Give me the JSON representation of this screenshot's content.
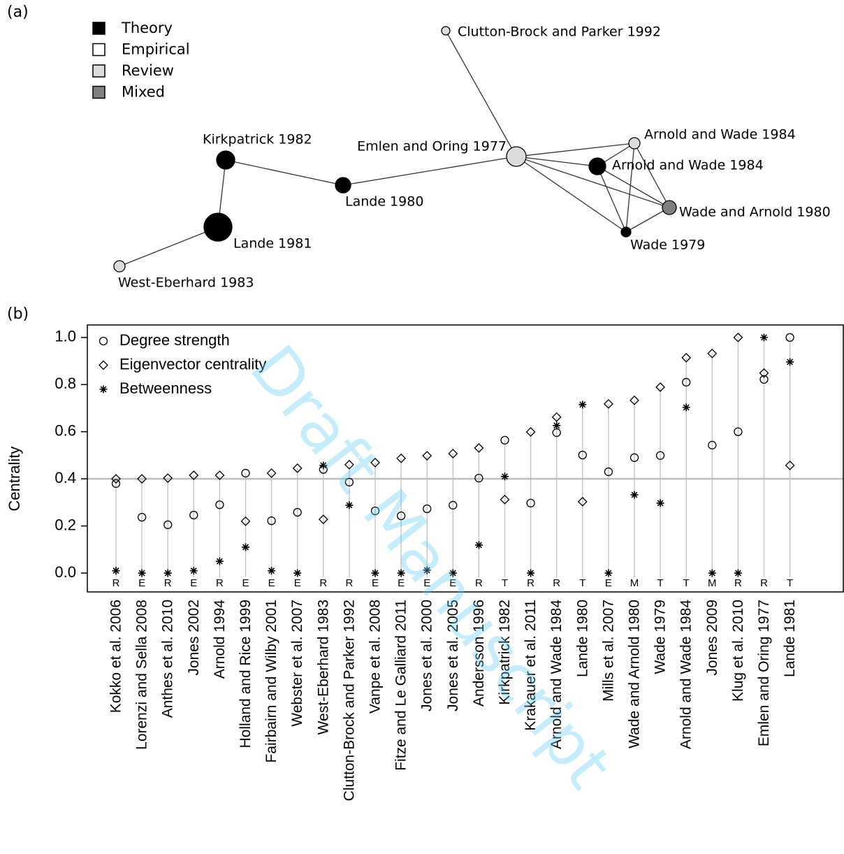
{
  "panel_labels": [
    "(a)",
    "(b)"
  ],
  "watermark": "Draft Manuscript",
  "network": {
    "legend": [
      {
        "name": "Theory",
        "color": "#000000"
      },
      {
        "name": "Empirical",
        "color": "#ffffff"
      },
      {
        "name": "Review",
        "color": "#dcdcdc"
      },
      {
        "name": "Mixed",
        "color": "#808080"
      }
    ],
    "nodes": [
      {
        "label": "Clutton-Brock and Parker 1992",
        "type": 2
      },
      {
        "label": "Emlen and Oring 1977",
        "type": 2
      },
      {
        "label": "Arnold and Wade 1984",
        "type": 2
      },
      {
        "label": "Arnold and Wade 1984",
        "type": 0
      },
      {
        "label": "Wade and Arnold 1980",
        "type": 3
      },
      {
        "label": "Wade 1979",
        "type": 0
      },
      {
        "label": "Kirkpatrick 1982",
        "type": 0
      },
      {
        "label": "Lande 1980",
        "type": 0
      },
      {
        "label": "Lande 1981",
        "type": 0
      },
      {
        "label": "West-Eberhard 1983",
        "type": 2
      }
    ],
    "edges": [
      [
        0,
        1
      ],
      [
        1,
        2
      ],
      [
        1,
        3
      ],
      [
        1,
        4
      ],
      [
        1,
        5
      ],
      [
        1,
        7
      ],
      [
        7,
        6
      ],
      [
        6,
        8
      ],
      [
        8,
        9
      ],
      [
        2,
        3
      ],
      [
        2,
        4
      ],
      [
        2,
        5
      ],
      [
        3,
        4
      ],
      [
        3,
        5
      ],
      [
        4,
        5
      ]
    ]
  },
  "chart_data": {
    "type": "dot",
    "y_label": "Centrality",
    "categories": [
      "Kokko et al. 2006",
      "Lorenzi and Sella 2008",
      "Anthes et al. 2010",
      "Jones 2002",
      "Arnold 1994",
      "Holland and Rice 1999",
      "Fairbairn and Wilby 2001",
      "Webster et al. 2007",
      "West-Eberhard 1983",
      "Clutton-Brock and Parker 1992",
      "Vanpe et al. 2008",
      "Fitze and Le Galliard 2011",
      "Jones et al. 2000",
      "Jones et al. 2005",
      "Andersson 1996",
      "Kirkpatrick 1982",
      "Krakauer et al. 2011",
      "Arnold and Wade 1984",
      "Lande 1980",
      "Mills et al. 2007",
      "Wade and Arnold 1980",
      "Wade 1979",
      "Arnold and Wade 1984",
      "Jones 2009",
      "Klug et al. 2010",
      "Emlen and Oring 1977",
      "Lande 1981"
    ],
    "category_types": [
      "R",
      "E",
      "R",
      "E",
      "R",
      "E",
      "E",
      "E",
      "R",
      "R",
      "E",
      "E",
      "E",
      "E",
      "R",
      "T",
      "R",
      "R",
      "T",
      "E",
      "M",
      "T",
      "T",
      "M",
      "R",
      "R",
      "T"
    ],
    "series": [
      {
        "name": "Degree strength",
        "marker": "circle",
        "color": "#000000",
        "values": [
          0.38,
          0.237,
          0.205,
          0.246,
          0.29,
          0.424,
          0.222,
          0.258,
          0.44,
          0.386,
          0.264,
          0.243,
          0.273,
          0.288,
          0.403,
          0.564,
          0.297,
          0.596,
          0.501,
          0.43,
          0.49,
          0.499,
          0.81,
          0.543,
          0.6,
          0.822,
          1.0
        ]
      },
      {
        "name": "Eigenvector centrality",
        "marker": "diamond",
        "color": "#000000",
        "values": [
          0.4,
          0.4,
          0.403,
          0.415,
          0.415,
          0.22,
          0.424,
          0.445,
          0.228,
          0.46,
          0.469,
          0.487,
          0.498,
          0.507,
          0.531,
          0.312,
          0.599,
          0.662,
          0.303,
          0.718,
          0.733,
          0.789,
          0.914,
          0.932,
          1.0,
          0.849,
          0.457
        ]
      },
      {
        "name": "Betweenness",
        "marker": "asterisk",
        "color": "#000000",
        "values": [
          0.01,
          0,
          0,
          0.01,
          0.05,
          0.11,
          0.01,
          0,
          0.457,
          0.288,
          0,
          0,
          0.012,
          0,
          0.119,
          0.41,
          0,
          0.626,
          0.715,
          0,
          0.332,
          0.297,
          0.703,
          0,
          0,
          1.0,
          0.896
        ]
      }
    ],
    "reference_line": 0.4,
    "ylim": [
      -0.08,
      1.053
    ],
    "yticks": [
      {
        "value": 0,
        "label": "0.0"
      },
      0.2,
      0.4,
      0.6,
      0.8,
      {
        "value": 1,
        "label": "1.0"
      }
    ]
  }
}
